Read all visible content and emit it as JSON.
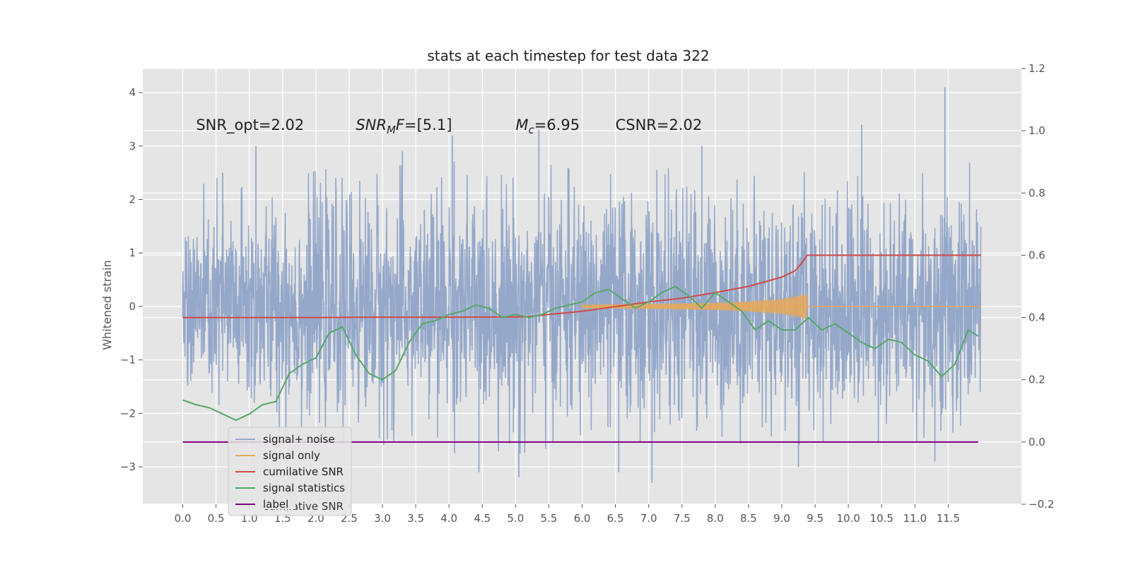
{
  "chart_data": {
    "type": "line",
    "title": "stats at each timestep for test data 322",
    "ylabel": "Whitened strain",
    "xlabel": "",
    "xlim": [
      -0.6,
      12.6
    ],
    "ylim": [
      -3.7,
      4.45
    ],
    "y2lim": [
      -0.2,
      1.2
    ],
    "grid": true,
    "legend_position": "lower-left",
    "x_ticks": [
      0.0,
      0.5,
      1.0,
      1.5,
      2.0,
      2.5,
      3.0,
      3.5,
      4.0,
      4.5,
      5.0,
      5.5,
      6.0,
      6.5,
      7.0,
      7.5,
      8.0,
      8.5,
      9.0,
      9.5,
      10.0,
      10.5,
      11.0,
      11.5
    ],
    "x_tick_labels": [
      "0.0",
      "0.5",
      "1.0",
      "1.5",
      "2.0",
      "2.5",
      "3.0",
      "3.5",
      "4.0",
      "4.5",
      "5.0",
      "5.5",
      "6.0",
      "6.5",
      "7.0",
      "7.5",
      "8.0",
      "8.5",
      "9.0",
      "9.5",
      "10.0",
      "10.5",
      "11.0",
      "11.5"
    ],
    "y_ticks": [
      -3,
      -2,
      -1,
      0,
      1,
      2,
      3,
      4
    ],
    "y_tick_labels": [
      "−3",
      "−2",
      "−1",
      "0",
      "1",
      "2",
      "3",
      "4"
    ],
    "y2_ticks": [
      -0.2,
      0.0,
      0.2,
      0.4,
      0.6,
      0.8,
      1.0,
      1.2
    ],
    "y2_tick_labels": [
      "−0.2",
      "0.0",
      "0.2",
      "0.4",
      "0.6",
      "0.8",
      "1.0",
      "1.2"
    ],
    "annotations": [
      {
        "segments": [
          {
            "text": "SNR_opt=2.02",
            "style": "normal"
          }
        ],
        "x": 0.2,
        "y": 3.3
      },
      {
        "segments": [
          {
            "text": "SNR",
            "style": "italic"
          },
          {
            "text": "M",
            "style": "italic-sub"
          },
          {
            "text": "F",
            "style": "italic"
          },
          {
            "text": "=[5.1]",
            "style": "normal"
          }
        ],
        "x": 2.6,
        "y": 3.3
      },
      {
        "segments": [
          {
            "text": "M",
            "style": "italic"
          },
          {
            "text": "c",
            "style": "italic-sub"
          },
          {
            "text": "=6.95",
            "style": "normal"
          }
        ],
        "x": 5.0,
        "y": 3.3
      },
      {
        "segments": [
          {
            "text": "CSNR=2.02",
            "style": "normal"
          }
        ],
        "x": 6.5,
        "y": 3.3
      }
    ],
    "series": [
      {
        "name": "signal+ noise",
        "color": "#95a8ca",
        "axis": "left",
        "kind": "noise",
        "x_range": [
          0.0,
          11.99
        ],
        "envelope_top": [
          [
            0.0,
            1.8
          ],
          [
            0.5,
            2.1
          ],
          [
            1.0,
            2.2
          ],
          [
            1.5,
            2.0
          ],
          [
            2.0,
            2.2
          ],
          [
            2.5,
            2.3
          ],
          [
            3.0,
            2.4
          ],
          [
            3.5,
            2.2
          ],
          [
            4.0,
            2.4
          ],
          [
            4.5,
            2.1
          ],
          [
            5.0,
            2.2
          ],
          [
            5.5,
            2.3
          ],
          [
            6.0,
            2.2
          ],
          [
            6.5,
            2.4
          ],
          [
            7.0,
            2.3
          ],
          [
            7.5,
            2.2
          ],
          [
            8.0,
            2.4
          ],
          [
            8.5,
            2.3
          ],
          [
            9.0,
            2.3
          ],
          [
            9.5,
            2.2
          ],
          [
            10.0,
            2.3
          ],
          [
            10.5,
            2.2
          ],
          [
            11.0,
            2.3
          ],
          [
            11.5,
            2.4
          ],
          [
            11.99,
            2.3
          ]
        ],
        "envelope_bottom": [
          [
            0.0,
            -1.8
          ],
          [
            0.5,
            -2.0
          ],
          [
            1.0,
            -2.2
          ],
          [
            1.5,
            -2.1
          ],
          [
            2.0,
            -2.3
          ],
          [
            2.5,
            -2.2
          ],
          [
            3.0,
            -2.3
          ],
          [
            3.5,
            -2.2
          ],
          [
            4.0,
            -2.4
          ],
          [
            4.5,
            -2.3
          ],
          [
            5.0,
            -2.4
          ],
          [
            5.5,
            -2.3
          ],
          [
            6.0,
            -2.2
          ],
          [
            6.5,
            -2.4
          ],
          [
            7.0,
            -2.3
          ],
          [
            7.5,
            -2.2
          ],
          [
            8.0,
            -2.3
          ],
          [
            8.5,
            -2.2
          ],
          [
            9.0,
            -2.3
          ],
          [
            9.5,
            -2.2
          ],
          [
            10.0,
            -2.3
          ],
          [
            10.5,
            -2.2
          ],
          [
            11.0,
            -2.3
          ],
          [
            11.5,
            -2.4
          ],
          [
            11.99,
            -2.3
          ]
        ],
        "peaks": [
          [
            0.6,
            2.5
          ],
          [
            1.1,
            3.0
          ],
          [
            3.3,
            2.9
          ],
          [
            4.05,
            3.2
          ],
          [
            5.35,
            3.3
          ],
          [
            7.8,
            3.0
          ],
          [
            10.2,
            3.4
          ],
          [
            11.45,
            4.1
          ],
          [
            5.05,
            -3.2
          ],
          [
            7.05,
            -3.3
          ],
          [
            6.55,
            -3.1
          ],
          [
            4.45,
            -3.1
          ],
          [
            11.3,
            -2.9
          ],
          [
            9.25,
            -3.0
          ]
        ]
      },
      {
        "name": "signal only",
        "color": "#e8a857",
        "axis": "left",
        "x": [
          6.0,
          7.0,
          8.0,
          8.5,
          9.0,
          9.2,
          9.38
        ],
        "amplitude": [
          0.03,
          0.05,
          0.07,
          0.1,
          0.15,
          0.2,
          0.25
        ]
      },
      {
        "name": "cumilative SNR",
        "color": "#d04a46",
        "axis": "right",
        "x": [
          0.0,
          1.0,
          2.0,
          3.0,
          4.0,
          5.0,
          5.2,
          5.5,
          6.0,
          6.5,
          7.0,
          7.5,
          8.0,
          8.5,
          9.0,
          9.2,
          9.3,
          9.38,
          10.0,
          11.0,
          11.99
        ],
        "y": [
          0.4,
          0.4,
          0.4,
          0.401,
          0.401,
          0.402,
          0.403,
          0.41,
          0.42,
          0.435,
          0.45,
          0.462,
          0.48,
          0.5,
          0.53,
          0.55,
          0.575,
          0.6,
          0.6,
          0.6,
          0.6
        ]
      },
      {
        "name": "signal statistics",
        "color": "#55a868",
        "axis": "right",
        "x": [
          0.0,
          0.2,
          0.4,
          0.6,
          0.8,
          1.0,
          1.2,
          1.4,
          1.6,
          1.8,
          2.0,
          2.2,
          2.4,
          2.6,
          2.8,
          3.0,
          3.2,
          3.4,
          3.6,
          3.8,
          4.0,
          4.2,
          4.4,
          4.6,
          4.8,
          5.0,
          5.2,
          5.4,
          5.6,
          5.8,
          6.0,
          6.2,
          6.4,
          6.6,
          6.8,
          7.0,
          7.2,
          7.4,
          7.6,
          7.8,
          8.0,
          8.2,
          8.4,
          8.6,
          8.8,
          9.0,
          9.2,
          9.4,
          9.6,
          9.8,
          10.0,
          10.2,
          10.4,
          10.6,
          10.8,
          11.0,
          11.2,
          11.4,
          11.6,
          11.8,
          11.95
        ],
        "y": [
          0.135,
          0.12,
          0.11,
          0.09,
          0.07,
          0.09,
          0.12,
          0.13,
          0.22,
          0.25,
          0.27,
          0.35,
          0.37,
          0.28,
          0.22,
          0.2,
          0.23,
          0.32,
          0.38,
          0.39,
          0.41,
          0.42,
          0.44,
          0.43,
          0.4,
          0.41,
          0.4,
          0.41,
          0.43,
          0.44,
          0.45,
          0.48,
          0.49,
          0.46,
          0.43,
          0.45,
          0.48,
          0.5,
          0.47,
          0.43,
          0.48,
          0.45,
          0.42,
          0.36,
          0.39,
          0.36,
          0.36,
          0.4,
          0.36,
          0.38,
          0.35,
          0.32,
          0.3,
          0.33,
          0.32,
          0.28,
          0.26,
          0.21,
          0.25,
          0.36,
          0.34
        ]
      },
      {
        "name": "label",
        "color": "#800080",
        "axis": "right",
        "x": [
          0.0,
          11.95
        ],
        "y": [
          0.0,
          0.0
        ]
      }
    ],
    "legend_ghost_text": "cumilative SNR"
  }
}
